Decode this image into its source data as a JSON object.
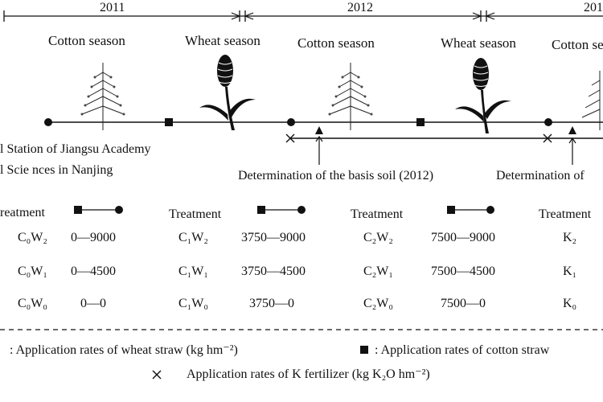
{
  "timeline": {
    "years": [
      "2011",
      "2012",
      "201"
    ],
    "seasons": [
      "Cotton season",
      "Wheat season",
      "Cotton season",
      "Wheat season",
      "Cotton season"
    ],
    "station_lines": [
      "l Station of Jiangsu Academy",
      "l Scie nces in Nanjing"
    ],
    "determinations": [
      "Determination of the basis soil (2012)",
      "Determination of"
    ]
  },
  "table": {
    "groups": [
      {
        "header": "reatment",
        "rows": [
          {
            "treatment": "C₀W₂",
            "value": "0—9000"
          },
          {
            "treatment": "C₀W₁",
            "value": "0—4500"
          },
          {
            "treatment": "C₀W₀",
            "value": "0—0"
          }
        ]
      },
      {
        "header": "Treatment",
        "rows": [
          {
            "treatment": "C₁W₂",
            "value": "3750—9000"
          },
          {
            "treatment": "C₁W₁",
            "value": "3750—4500"
          },
          {
            "treatment": "C₁W₀",
            "value": "3750—0"
          }
        ]
      },
      {
        "header": "Treatment",
        "rows": [
          {
            "treatment": "C₂W₂",
            "value": "7500—9000"
          },
          {
            "treatment": "C₂W₁",
            "value": "7500—4500"
          },
          {
            "treatment": "C₂W₀",
            "value": "7500—0"
          }
        ]
      },
      {
        "header": "Treatment",
        "rows": [
          {
            "treatment": "K₂",
            "value": ""
          },
          {
            "treatment": "K₁",
            "value": ""
          },
          {
            "treatment": "K₀",
            "value": ""
          }
        ]
      }
    ]
  },
  "legend": {
    "wheat_straw": ": Application rates of wheat straw (kg hm⁻²)",
    "cotton_straw": ": Application rates of cotton straw",
    "k_fertilizer": "Application rates of K fertilizer (kg K₂O hm⁻²)"
  },
  "icons": [
    "circle-marker-icon",
    "square-marker-icon",
    "cross-marker-icon",
    "cotton-plant-icon",
    "wheat-plant-icon",
    "arrow-up-icon"
  ]
}
